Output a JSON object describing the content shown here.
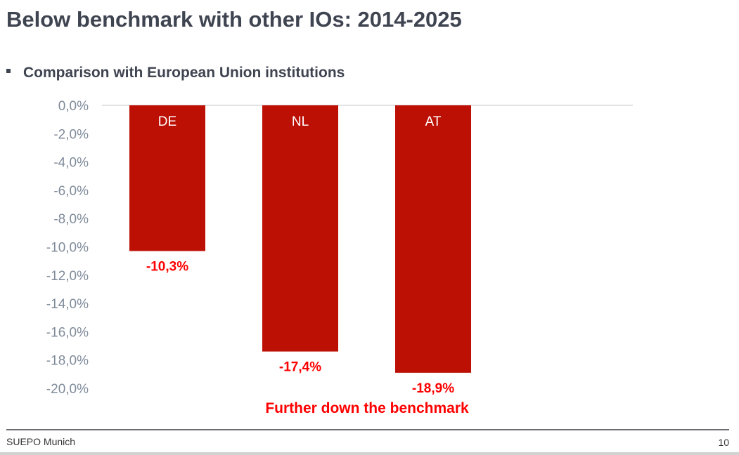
{
  "title": "Below benchmark with other IOs: 2014-2025",
  "bullet": "Comparison with European Union institutions",
  "footer": {
    "left": "SUEPO Munich",
    "page": "10"
  },
  "colors": {
    "bar": "#bd1004",
    "data_label": "#ff0000",
    "tick": "#7f8b9a",
    "title": "#3f4451"
  },
  "chart_data": {
    "type": "bar",
    "categories": [
      "DE",
      "NL",
      "AT"
    ],
    "values": [
      -10.3,
      -17.4,
      -18.9
    ],
    "data_labels": [
      "-10,3%",
      "-17,4%",
      "-18,9%"
    ],
    "yticks": [
      "0,0%",
      "-2,0%",
      "-4,0%",
      "-6,0%",
      "-8,0%",
      "-10,0%",
      "-12,0%",
      "-14,0%",
      "-16,0%",
      "-18,0%",
      "-20,0%"
    ],
    "ylim": [
      -20,
      0
    ],
    "grid": false,
    "annotation": "Further down the benchmark"
  }
}
